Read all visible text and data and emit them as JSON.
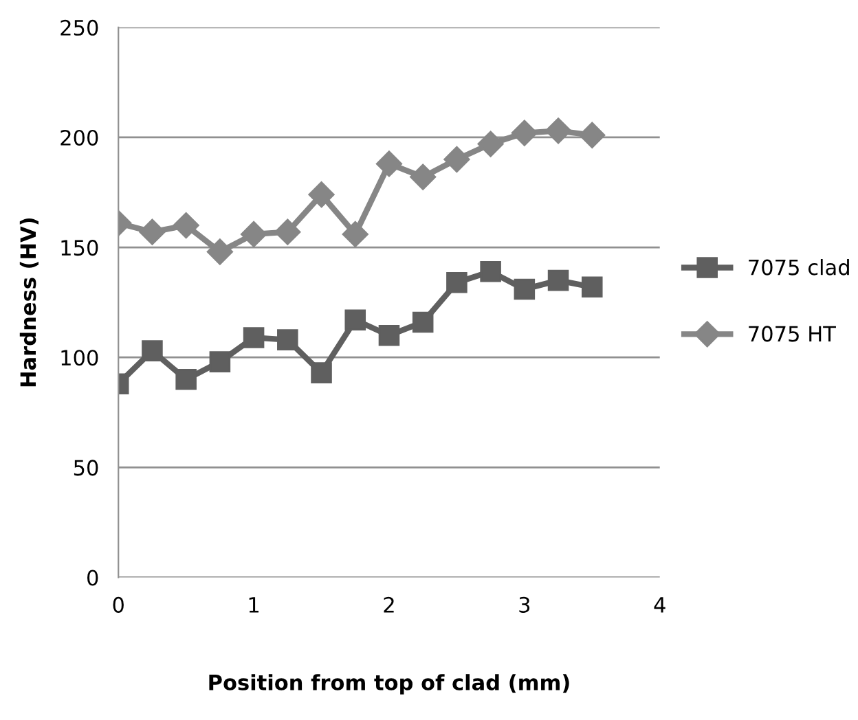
{
  "chart_data": {
    "type": "line",
    "xlabel": "Position from top of clad (mm)",
    "ylabel": "Hardness (HV)",
    "x": [
      0,
      0.25,
      0.5,
      0.75,
      1,
      1.25,
      1.5,
      1.75,
      2,
      2.25,
      2.5,
      2.75,
      3,
      3.25,
      3.5
    ],
    "series": [
      {
        "name": "7075 clad",
        "color": "#5f5f5f",
        "marker": "square",
        "values": [
          88,
          103,
          90,
          98,
          109,
          108,
          93,
          117,
          110,
          116,
          134,
          139,
          131,
          135,
          132
        ]
      },
      {
        "name": "7075 HT",
        "color": "#868686",
        "marker": "diamond",
        "values": [
          161,
          157,
          160,
          148,
          156,
          157,
          174,
          156,
          188,
          182,
          190,
          197,
          202,
          203,
          201
        ]
      }
    ],
    "xlim": [
      0,
      4
    ],
    "xticks": [
      0,
      1,
      2,
      3,
      4
    ],
    "ylim": [
      0,
      250
    ],
    "yticks": [
      0,
      50,
      100,
      150,
      200,
      250
    ],
    "grid": "y",
    "legend": "right",
    "line_style": "solid"
  }
}
